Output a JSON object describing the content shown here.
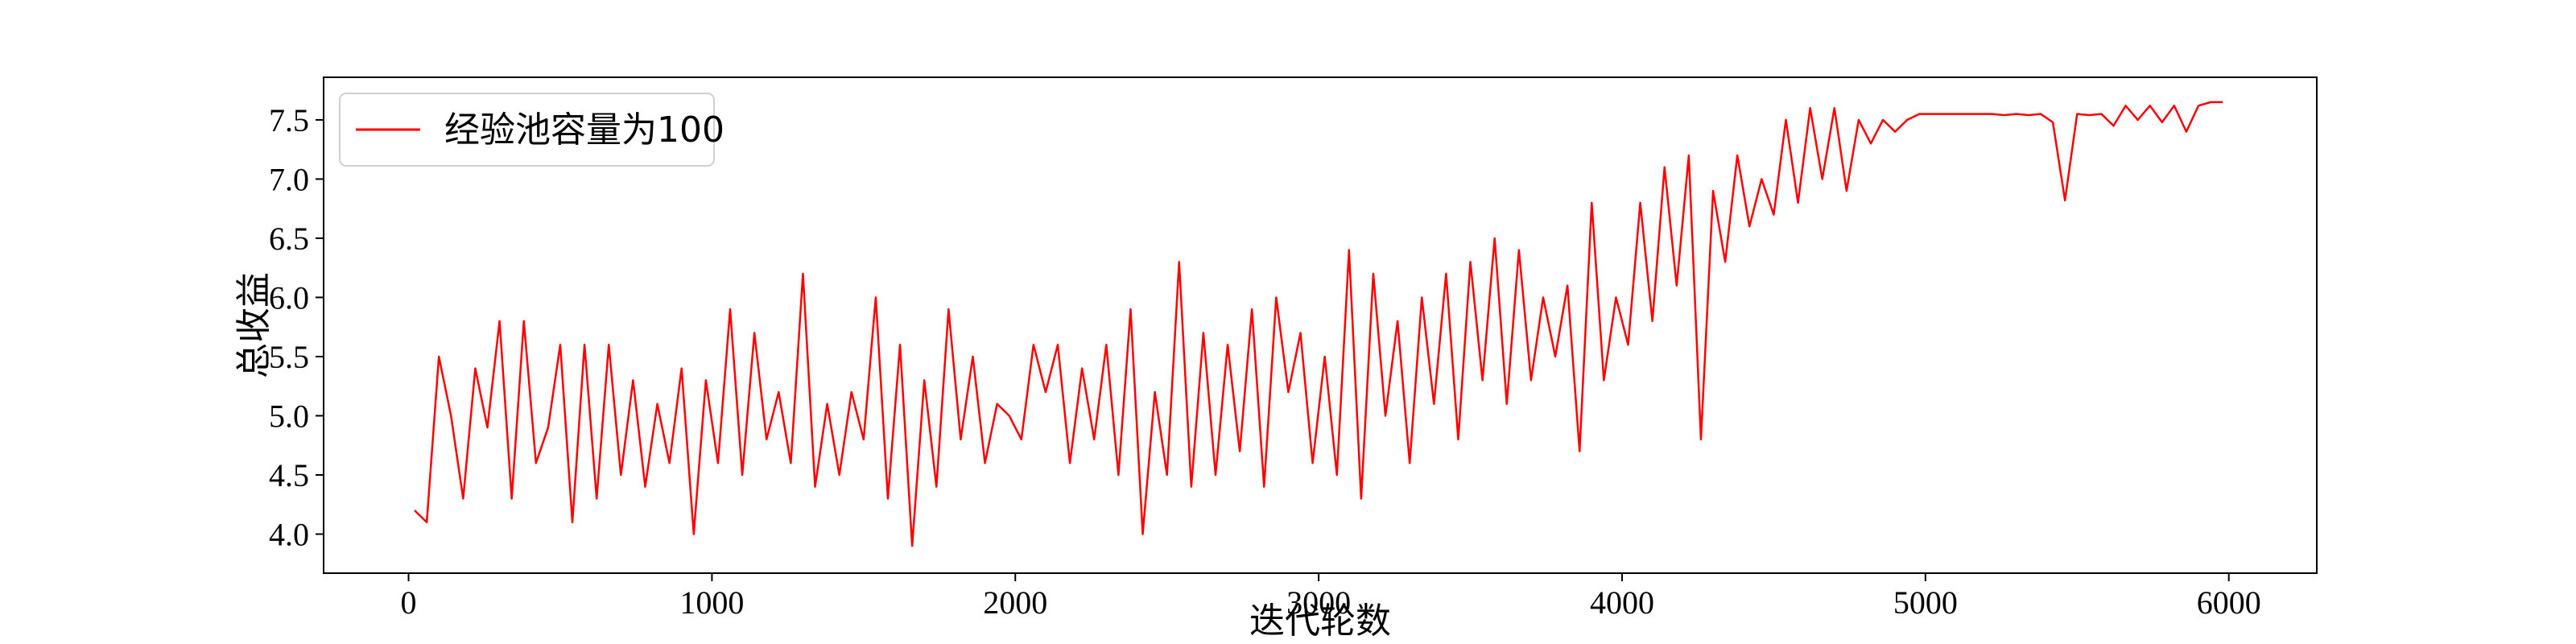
{
  "chart_data": {
    "type": "line",
    "x_label": "迭代轮数",
    "y_label": "总收益",
    "x": [
      20,
      60,
      100,
      140,
      180,
      220,
      260,
      300,
      340,
      380,
      420,
      460,
      500,
      540,
      580,
      620,
      660,
      700,
      740,
      780,
      820,
      860,
      900,
      940,
      980,
      1020,
      1060,
      1100,
      1140,
      1180,
      1220,
      1260,
      1300,
      1340,
      1380,
      1420,
      1460,
      1500,
      1540,
      1580,
      1620,
      1660,
      1700,
      1740,
      1780,
      1820,
      1860,
      1900,
      1940,
      1980,
      2020,
      2060,
      2100,
      2140,
      2180,
      2220,
      2260,
      2300,
      2340,
      2380,
      2420,
      2460,
      2500,
      2540,
      2580,
      2620,
      2660,
      2700,
      2740,
      2780,
      2820,
      2860,
      2900,
      2940,
      2980,
      3020,
      3060,
      3100,
      3140,
      3180,
      3220,
      3260,
      3300,
      3340,
      3380,
      3420,
      3460,
      3500,
      3540,
      3580,
      3620,
      3660,
      3700,
      3740,
      3780,
      3820,
      3860,
      3900,
      3940,
      3980,
      4020,
      4060,
      4100,
      4140,
      4180,
      4220,
      4260,
      4300,
      4340,
      4380,
      4420,
      4460,
      4500,
      4540,
      4580,
      4620,
      4660,
      4700,
      4740,
      4780,
      4820,
      4860,
      4900,
      4940,
      4980,
      5020,
      5060,
      5100,
      5140,
      5180,
      5220,
      5260,
      5300,
      5340,
      5380,
      5420,
      5460,
      5500,
      5540,
      5580,
      5620,
      5660,
      5700,
      5740,
      5780,
      5820,
      5860,
      5900,
      5940,
      5980
    ],
    "series": [
      {
        "name": "经验池容量为100",
        "color": "#ff0000",
        "values": [
          4.2,
          4.1,
          5.5,
          5.0,
          4.3,
          5.4,
          4.9,
          5.8,
          4.3,
          5.8,
          4.6,
          4.9,
          5.6,
          4.1,
          5.6,
          4.3,
          5.6,
          4.5,
          5.3,
          4.4,
          5.1,
          4.6,
          5.4,
          4.0,
          5.3,
          4.6,
          5.9,
          4.5,
          5.7,
          4.8,
          5.2,
          4.6,
          6.2,
          4.4,
          5.1,
          4.5,
          5.2,
          4.8,
          6.0,
          4.3,
          5.6,
          3.9,
          5.3,
          4.4,
          5.9,
          4.8,
          5.5,
          4.6,
          5.1,
          5.0,
          4.8,
          5.6,
          5.2,
          5.6,
          4.6,
          5.4,
          4.8,
          5.6,
          4.5,
          5.9,
          4.0,
          5.2,
          4.5,
          6.3,
          4.4,
          5.7,
          4.5,
          5.6,
          4.7,
          5.9,
          4.4,
          6.0,
          5.2,
          5.7,
          4.6,
          5.5,
          4.5,
          6.4,
          4.3,
          6.2,
          5.0,
          5.8,
          4.6,
          6.0,
          5.1,
          6.2,
          4.8,
          6.3,
          5.3,
          6.5,
          5.1,
          6.4,
          5.3,
          6.0,
          5.5,
          6.1,
          4.7,
          6.8,
          5.3,
          6.0,
          5.6,
          6.8,
          5.8,
          7.1,
          6.1,
          7.2,
          4.8,
          6.9,
          6.3,
          7.2,
          6.6,
          7.0,
          6.7,
          7.5,
          6.8,
          7.6,
          7.0,
          7.6,
          6.9,
          7.5,
          7.3,
          7.5,
          7.4,
          7.5,
          7.55,
          7.55,
          7.55,
          7.55,
          7.55,
          7.55,
          7.55,
          7.54,
          7.55,
          7.54,
          7.55,
          7.48,
          6.82,
          7.55,
          7.54,
          7.55,
          7.45,
          7.62,
          7.5,
          7.62,
          7.48,
          7.62,
          7.4,
          7.62,
          7.65,
          7.65
        ]
      }
    ],
    "xlim": [
      -280,
      6290
    ],
    "ylim": [
      3.67,
      7.86
    ],
    "xticks": [
      0,
      1000,
      2000,
      3000,
      4000,
      5000,
      6000
    ],
    "yticks": [
      {
        "value": 4,
        "label": "4.0"
      },
      4.5,
      {
        "value": 5,
        "label": "5.0"
      },
      5.5,
      {
        "value": 6,
        "label": "6.0"
      },
      6.5,
      {
        "value": 7,
        "label": "7.0"
      },
      7.5
    ],
    "legend": "upper left"
  }
}
